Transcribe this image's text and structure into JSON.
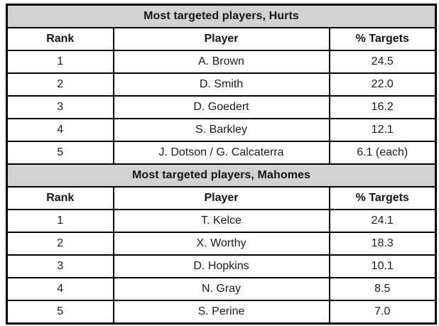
{
  "colors": {
    "title_band_bg": "#d2d2d2",
    "border": "#000000",
    "text": "#161616",
    "background": "#ffffff"
  },
  "chart_data": [
    {
      "type": "table",
      "title": "Most targeted players, Hurts",
      "columns": [
        "Rank",
        "Player",
        "% Targets"
      ],
      "rows": [
        [
          "1",
          "A. Brown",
          "24.5"
        ],
        [
          "2",
          "D. Smith",
          "22.0"
        ],
        [
          "3",
          "D. Goedert",
          "16.2"
        ],
        [
          "4",
          "S. Barkley",
          "12.1"
        ],
        [
          "5",
          "J. Dotson / G. Calcaterra",
          "6.1 (each)"
        ]
      ]
    },
    {
      "type": "table",
      "title": "Most targeted players, Mahomes",
      "columns": [
        "Rank",
        "Player",
        "% Targets"
      ],
      "rows": [
        [
          "1",
          "T. Kelce",
          "24.1"
        ],
        [
          "2",
          "X. Worthy",
          "18.3"
        ],
        [
          "3",
          "D. Hopkins",
          "10.1"
        ],
        [
          "4",
          "N. Gray",
          "8.5"
        ],
        [
          "5",
          "S. Perine",
          "7.0"
        ]
      ]
    }
  ]
}
